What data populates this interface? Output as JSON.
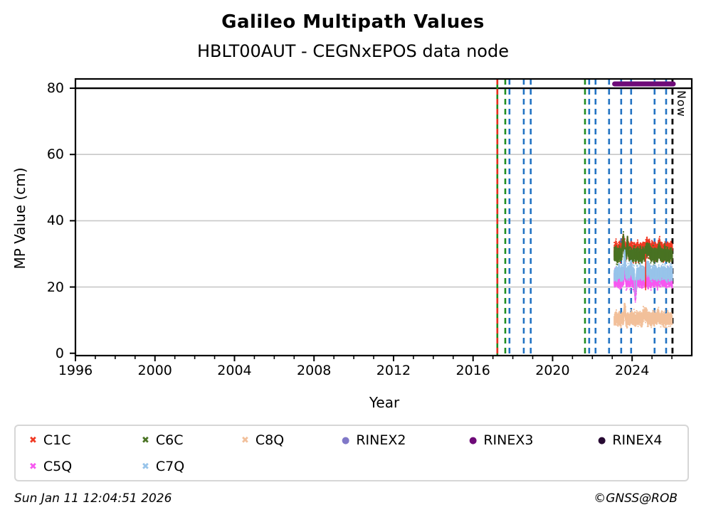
{
  "title": "Galileo Multipath Values",
  "subtitle": "HBLT00AUT - CEGNxEPOS data node",
  "footer": {
    "timestamp": "Sun Jan 11 12:04:51 2026",
    "credit": "©GNSS@ROB"
  },
  "colors": {
    "c1c": "#f03a24",
    "c6c": "#4a7324",
    "c8q": "#f2c09b",
    "c5q": "#f659f0",
    "c7q": "#98c4ea",
    "rinex2": "#8078c8",
    "rinex3": "#6e0a78",
    "rinex4": "#270a33",
    "event_blue": "#2273c3",
    "event_green": "#1f8c1f",
    "event_red": "#e62e1f",
    "now_line": "#000000",
    "grid": "#c8c8c8",
    "axis": "#000000"
  },
  "legend": {
    "items": [
      {
        "label": "C1C",
        "marker": "x",
        "color": "#f03a24",
        "row": 0,
        "col": 0
      },
      {
        "label": "C6C",
        "marker": "x",
        "color": "#4a7324",
        "row": 0,
        "col": 1
      },
      {
        "label": "C8Q",
        "marker": "x",
        "color": "#f2c09b",
        "row": 0,
        "col": 2
      },
      {
        "label": "RINEX2",
        "marker": "circle",
        "color": "#8078c8",
        "row": 0,
        "col": 3
      },
      {
        "label": "RINEX3",
        "marker": "circle",
        "color": "#6e0a78",
        "row": 0,
        "col": 4
      },
      {
        "label": "RINEX4",
        "marker": "circle",
        "color": "#270a33",
        "row": 0,
        "col": 5
      },
      {
        "label": "C5Q",
        "marker": "x",
        "color": "#f659f0",
        "row": 1,
        "col": 0
      },
      {
        "label": "C7Q",
        "marker": "x",
        "color": "#98c4ea",
        "row": 1,
        "col": 1
      }
    ]
  },
  "chart_data": {
    "type": "scatter",
    "title": "Galileo Multipath Values",
    "subtitle": "HBLT00AUT - CEGNxEPOS data node",
    "xlabel": "Year",
    "ylabel": "MP Value (cm)",
    "xlim": [
      1996,
      2027
    ],
    "ylim": [
      -0.7,
      82.8
    ],
    "xticks_major": [
      1996,
      2000,
      2004,
      2008,
      2012,
      2016,
      2020,
      2024
    ],
    "xticks_minor_step": 1,
    "yticks": [
      0,
      20,
      40,
      60,
      80
    ],
    "grid_y_values": [
      20,
      40,
      60
    ],
    "separator_line_y": 80,
    "legend_position": "below",
    "now_line": {
      "label": "Now",
      "year": 2026.03,
      "style": "dashed",
      "color": "#000000"
    },
    "event_lines": [
      {
        "year": 2017.22,
        "color": "#1f8c1f",
        "style": "solid"
      },
      {
        "year": 2017.22,
        "color": "#e62e1f",
        "style": "dashed"
      },
      {
        "year": 2017.62,
        "color": "#1f8c1f",
        "style": "dashed"
      },
      {
        "year": 2017.83,
        "color": "#2273c3",
        "style": "dashed"
      },
      {
        "year": 2018.55,
        "color": "#2273c3",
        "style": "dashed"
      },
      {
        "year": 2018.9,
        "color": "#2273c3",
        "style": "dashed"
      },
      {
        "year": 2021.63,
        "color": "#1f8c1f",
        "style": "dashed"
      },
      {
        "year": 2021.84,
        "color": "#2273c3",
        "style": "dashed"
      },
      {
        "year": 2022.16,
        "color": "#2273c3",
        "style": "dashed"
      },
      {
        "year": 2022.84,
        "color": "#2273c3",
        "style": "dashed"
      },
      {
        "year": 2023.45,
        "color": "#2273c3",
        "style": "dashed"
      },
      {
        "year": 2023.95,
        "color": "#2273c3",
        "style": "dashed"
      },
      {
        "year": 2025.13,
        "color": "#2273c3",
        "style": "dashed"
      },
      {
        "year": 2025.71,
        "color": "#2273c3",
        "style": "dashed"
      }
    ],
    "rinex_version_bars": [
      {
        "name": "RINEX3",
        "value": 81.3,
        "start": 2023.12,
        "end": 2026.07,
        "color": "#6e0a78",
        "thickness": 7
      }
    ],
    "series": [
      {
        "name": "C1C",
        "color": "#f03a24",
        "start": 2023.1,
        "end": 2026.02,
        "mean": 30.8,
        "band_half": 2.0,
        "noise_amp": 0.9,
        "seed": 11,
        "spikes": [
          {
            "c": 2023.56,
            "h": 3.0,
            "w": 0.05
          },
          {
            "c": 2023.76,
            "h": 2.2,
            "w": 0.04
          },
          {
            "c": 2024.78,
            "h": 1.6,
            "w": 0.09
          },
          {
            "c": 2025.38,
            "h": 1.2,
            "w": 0.05
          }
        ],
        "approx_range_cm": [
          27,
          36
        ]
      },
      {
        "name": "C6C",
        "color": "#4a7324",
        "start": 2023.1,
        "end": 2026.02,
        "mean": 29.7,
        "band_half": 1.5,
        "noise_amp": 0.8,
        "seed": 23,
        "spikes": [
          {
            "c": 2023.56,
            "h": 5.2,
            "w": 0.045
          },
          {
            "c": 2023.76,
            "h": 3.8,
            "w": 0.035
          },
          {
            "c": 2024.78,
            "h": 2.2,
            "w": 0.09
          },
          {
            "c": 2025.38,
            "h": 1.5,
            "w": 0.05
          }
        ],
        "approx_range_cm": [
          28,
          37
        ]
      },
      {
        "name": "C5Q",
        "color": "#f659f0",
        "start": 2023.1,
        "end": 2026.02,
        "mean": 22.6,
        "band_half": 2.0,
        "noise_amp": 0.8,
        "seed": 37,
        "spikes": [
          {
            "c": 2023.62,
            "h": 3.5,
            "w": 0.04
          },
          {
            "c": 2024.16,
            "h": -4.2,
            "w": 0.05
          }
        ],
        "approx_range_cm": [
          18,
          26
        ]
      },
      {
        "name": "C7Q",
        "color": "#98c4ea",
        "start": 2023.1,
        "end": 2026.02,
        "mean": 24.2,
        "band_half": 1.5,
        "noise_amp": 0.8,
        "seed": 41,
        "spikes": [
          {
            "c": 2023.62,
            "h": 5.5,
            "w": 0.035
          },
          {
            "c": 2023.92,
            "h": 2.0,
            "w": 0.05
          },
          {
            "c": 2024.16,
            "h": -4.8,
            "w": 0.05
          },
          {
            "c": 2024.78,
            "h": 1.8,
            "w": 0.08
          }
        ],
        "approx_range_cm": [
          18,
          31
        ]
      },
      {
        "name": "C8Q",
        "color": "#f2c09b",
        "start": 2023.1,
        "end": 2026.0,
        "mean": 10.4,
        "band_half": 1.4,
        "noise_amp": 0.7,
        "seed": 53,
        "spikes": [
          {
            "c": 2023.62,
            "h": 3.0,
            "w": 0.04
          },
          {
            "c": 2024.62,
            "h": 1.4,
            "w": 0.1
          },
          {
            "c": 2025.3,
            "h": 1.0,
            "w": 0.06
          }
        ],
        "approx_range_cm": [
          8,
          14
        ]
      }
    ],
    "outlier_streaks": [
      {
        "color": "#f03a24",
        "year": 2024.68,
        "v_from": 19,
        "v_to": 30
      },
      {
        "color": "#f659f0",
        "year": 2024.16,
        "v_from": 17.5,
        "v_to": 22
      }
    ]
  }
}
